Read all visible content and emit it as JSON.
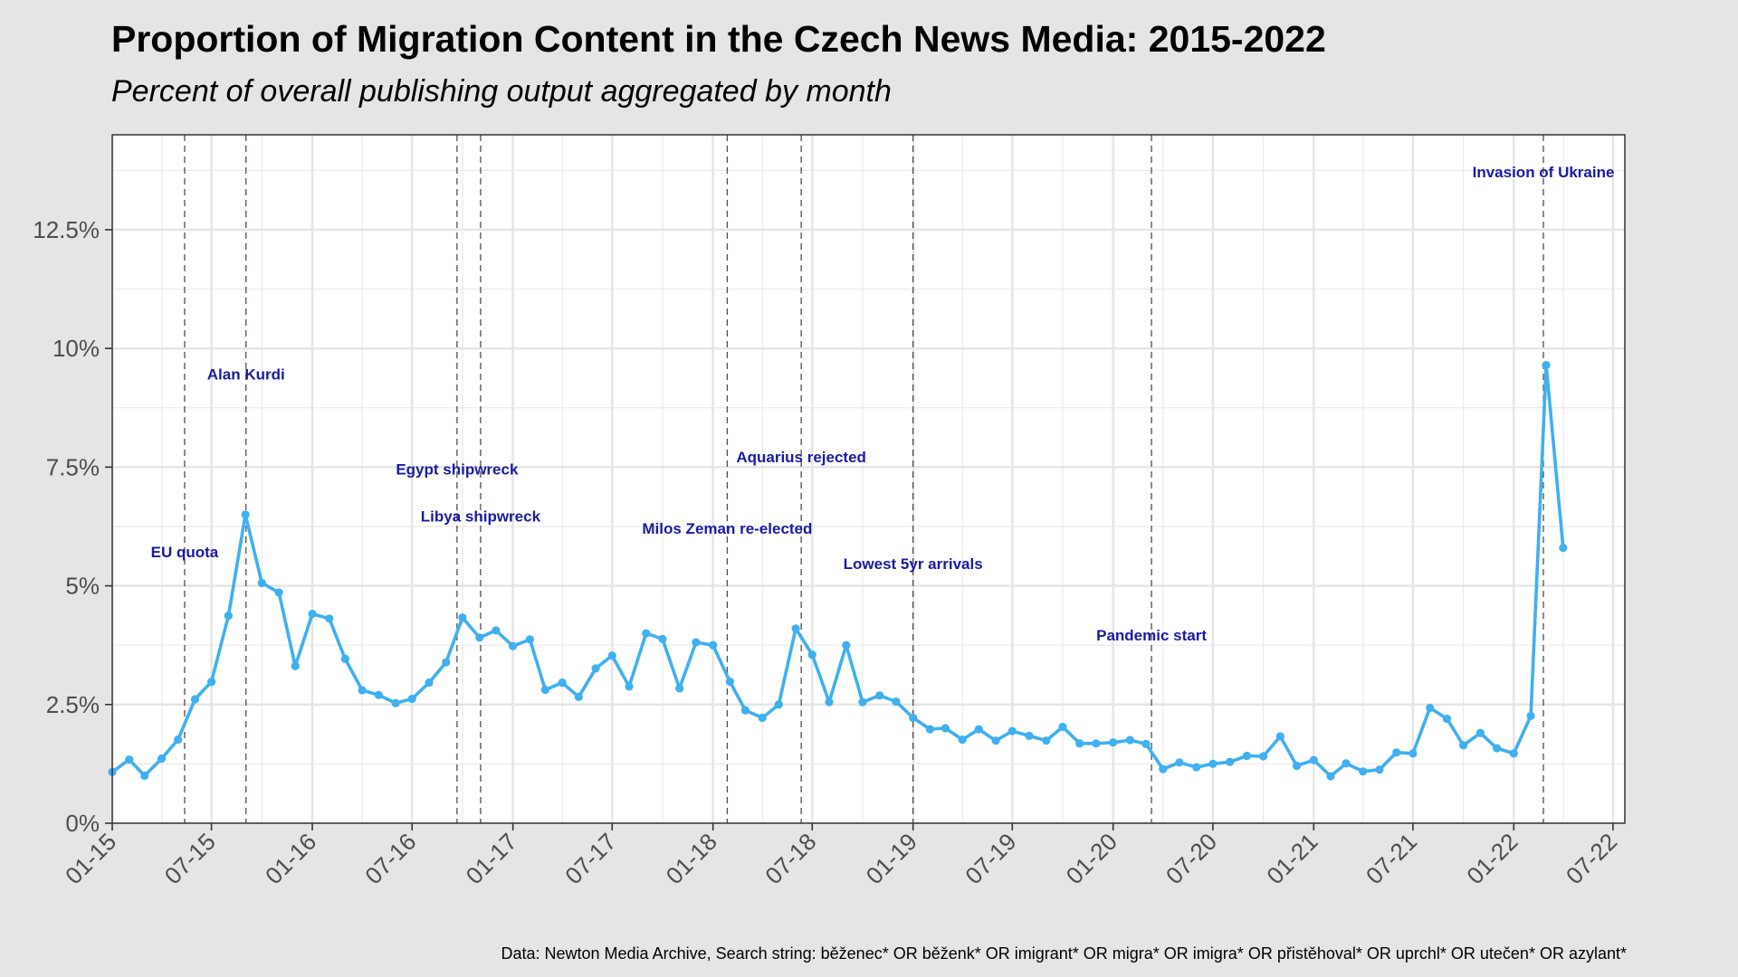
{
  "title": "Proportion of Migration Content in the Czech News Media: 2015-2022",
  "subtitle": "Percent of overall publishing output aggregated by month",
  "caption": "Data: Newton Media Archive, Search string: běženec* OR běženk* OR imigrant* OR migra* OR imigra* OR přistěhoval* OR uprchl* OR utečen* OR azylant*",
  "chart_data": {
    "type": "line",
    "title": "Proportion of Migration Content in the Czech News Media: 2015-2022",
    "subtitle": "Percent of overall publishing output aggregated by month",
    "x_tick_labels": [
      "01-15",
      "07-15",
      "01-16",
      "07-16",
      "01-17",
      "07-17",
      "01-18",
      "07-18",
      "01-19",
      "07-19",
      "01-20",
      "07-20",
      "01-21",
      "07-21",
      "01-22",
      "07-22"
    ],
    "y_tick_labels": [
      "0%",
      "2.5%",
      "5%",
      "7.5%",
      "10%",
      "12.5%"
    ],
    "y_ticks": [
      0,
      2.5,
      5,
      7.5,
      10,
      12.5
    ],
    "ylim": [
      0,
      14.5
    ],
    "xlim": [
      "2015-01-01",
      "2022-08-01"
    ],
    "grid": true,
    "line_color": "#3fb0f0",
    "annotation_color": "#1a1aa0",
    "series": [
      {
        "x": [
          "2015-01",
          "2015-02",
          "2015-03",
          "2015-04",
          "2015-05",
          "2015-06",
          "2015-07",
          "2015-08",
          "2015-09",
          "2015-10",
          "2015-11",
          "2015-12",
          "2016-01",
          "2016-02",
          "2016-03",
          "2016-04",
          "2016-05",
          "2016-06",
          "2016-07",
          "2016-08",
          "2016-09",
          "2016-10",
          "2016-11",
          "2016-12",
          "2017-01",
          "2017-02",
          "2017-03",
          "2017-04",
          "2017-05",
          "2017-06",
          "2017-07",
          "2017-08",
          "2017-09",
          "2017-10",
          "2017-11",
          "2017-12",
          "2018-01",
          "2018-02",
          "2018-03",
          "2018-04",
          "2018-05",
          "2018-06",
          "2018-07",
          "2018-08",
          "2018-09",
          "2018-10",
          "2018-11",
          "2018-12",
          "2019-01",
          "2019-02",
          "2019-03",
          "2019-04",
          "2019-05",
          "2019-06",
          "2019-07",
          "2019-08",
          "2019-09",
          "2019-10",
          "2019-11",
          "2019-12",
          "2020-01",
          "2020-02",
          "2020-03",
          "2020-04",
          "2020-05",
          "2020-06",
          "2020-07",
          "2020-08",
          "2020-09",
          "2020-10",
          "2020-11",
          "2020-12",
          "2021-01",
          "2021-02",
          "2021-03",
          "2021-04",
          "2021-05",
          "2021-06",
          "2021-07",
          "2021-08",
          "2021-09",
          "2021-10",
          "2021-11",
          "2021-12",
          "2022-01",
          "2022-02",
          "2022-03",
          "2022-04"
        ],
        "y": [
          1.08,
          1.34,
          1.0,
          1.36,
          1.76,
          2.61,
          2.98,
          4.37,
          6.5,
          5.06,
          4.86,
          3.31,
          4.41,
          4.31,
          3.46,
          2.8,
          2.7,
          2.53,
          2.62,
          2.96,
          3.39,
          4.33,
          3.91,
          4.06,
          3.73,
          3.87,
          2.81,
          2.96,
          2.66,
          3.26,
          3.53,
          2.88,
          4.0,
          3.88,
          2.84,
          3.81,
          3.75,
          2.98,
          2.38,
          2.22,
          2.5,
          4.1,
          3.55,
          2.55,
          3.75,
          2.55,
          2.69,
          2.56,
          2.22,
          1.98,
          2.0,
          1.76,
          1.98,
          1.74,
          1.94,
          1.84,
          1.74,
          2.03,
          1.68,
          1.68,
          1.7,
          1.75,
          1.67,
          1.14,
          1.28,
          1.18,
          1.25,
          1.29,
          1.42,
          1.41,
          1.83,
          1.21,
          1.33,
          0.99,
          1.26,
          1.09,
          1.13,
          1.49,
          1.47,
          2.43,
          2.2,
          1.64,
          1.9,
          1.58,
          1.47,
          2.26,
          9.65,
          5.8
        ]
      }
    ],
    "events": [
      {
        "date": "2015-05-13",
        "label": "EU quota",
        "label_y": 5.6
      },
      {
        "date": "2015-09-02",
        "label": "Alan Kurdi",
        "label_y": 9.35
      },
      {
        "date": "2016-09-21",
        "label": "Egypt shipwreck",
        "label_y": 7.35
      },
      {
        "date": "2016-11-03",
        "label": "Libya shipwreck",
        "label_y": 6.35
      },
      {
        "date": "2018-01-27",
        "label": "Milos Zeman re-elected",
        "label_y": 6.1
      },
      {
        "date": "2018-06-11",
        "label": "Aquarius rejected",
        "label_y": 7.6
      },
      {
        "date": "2019-01-01",
        "label": "Lowest 5yr arrivals",
        "label_y": 5.35
      },
      {
        "date": "2020-03-11",
        "label": "Pandemic start",
        "label_y": 3.85
      },
      {
        "date": "2022-02-24",
        "label": "Invasion of Ukraine",
        "label_y": 13.6
      }
    ]
  }
}
